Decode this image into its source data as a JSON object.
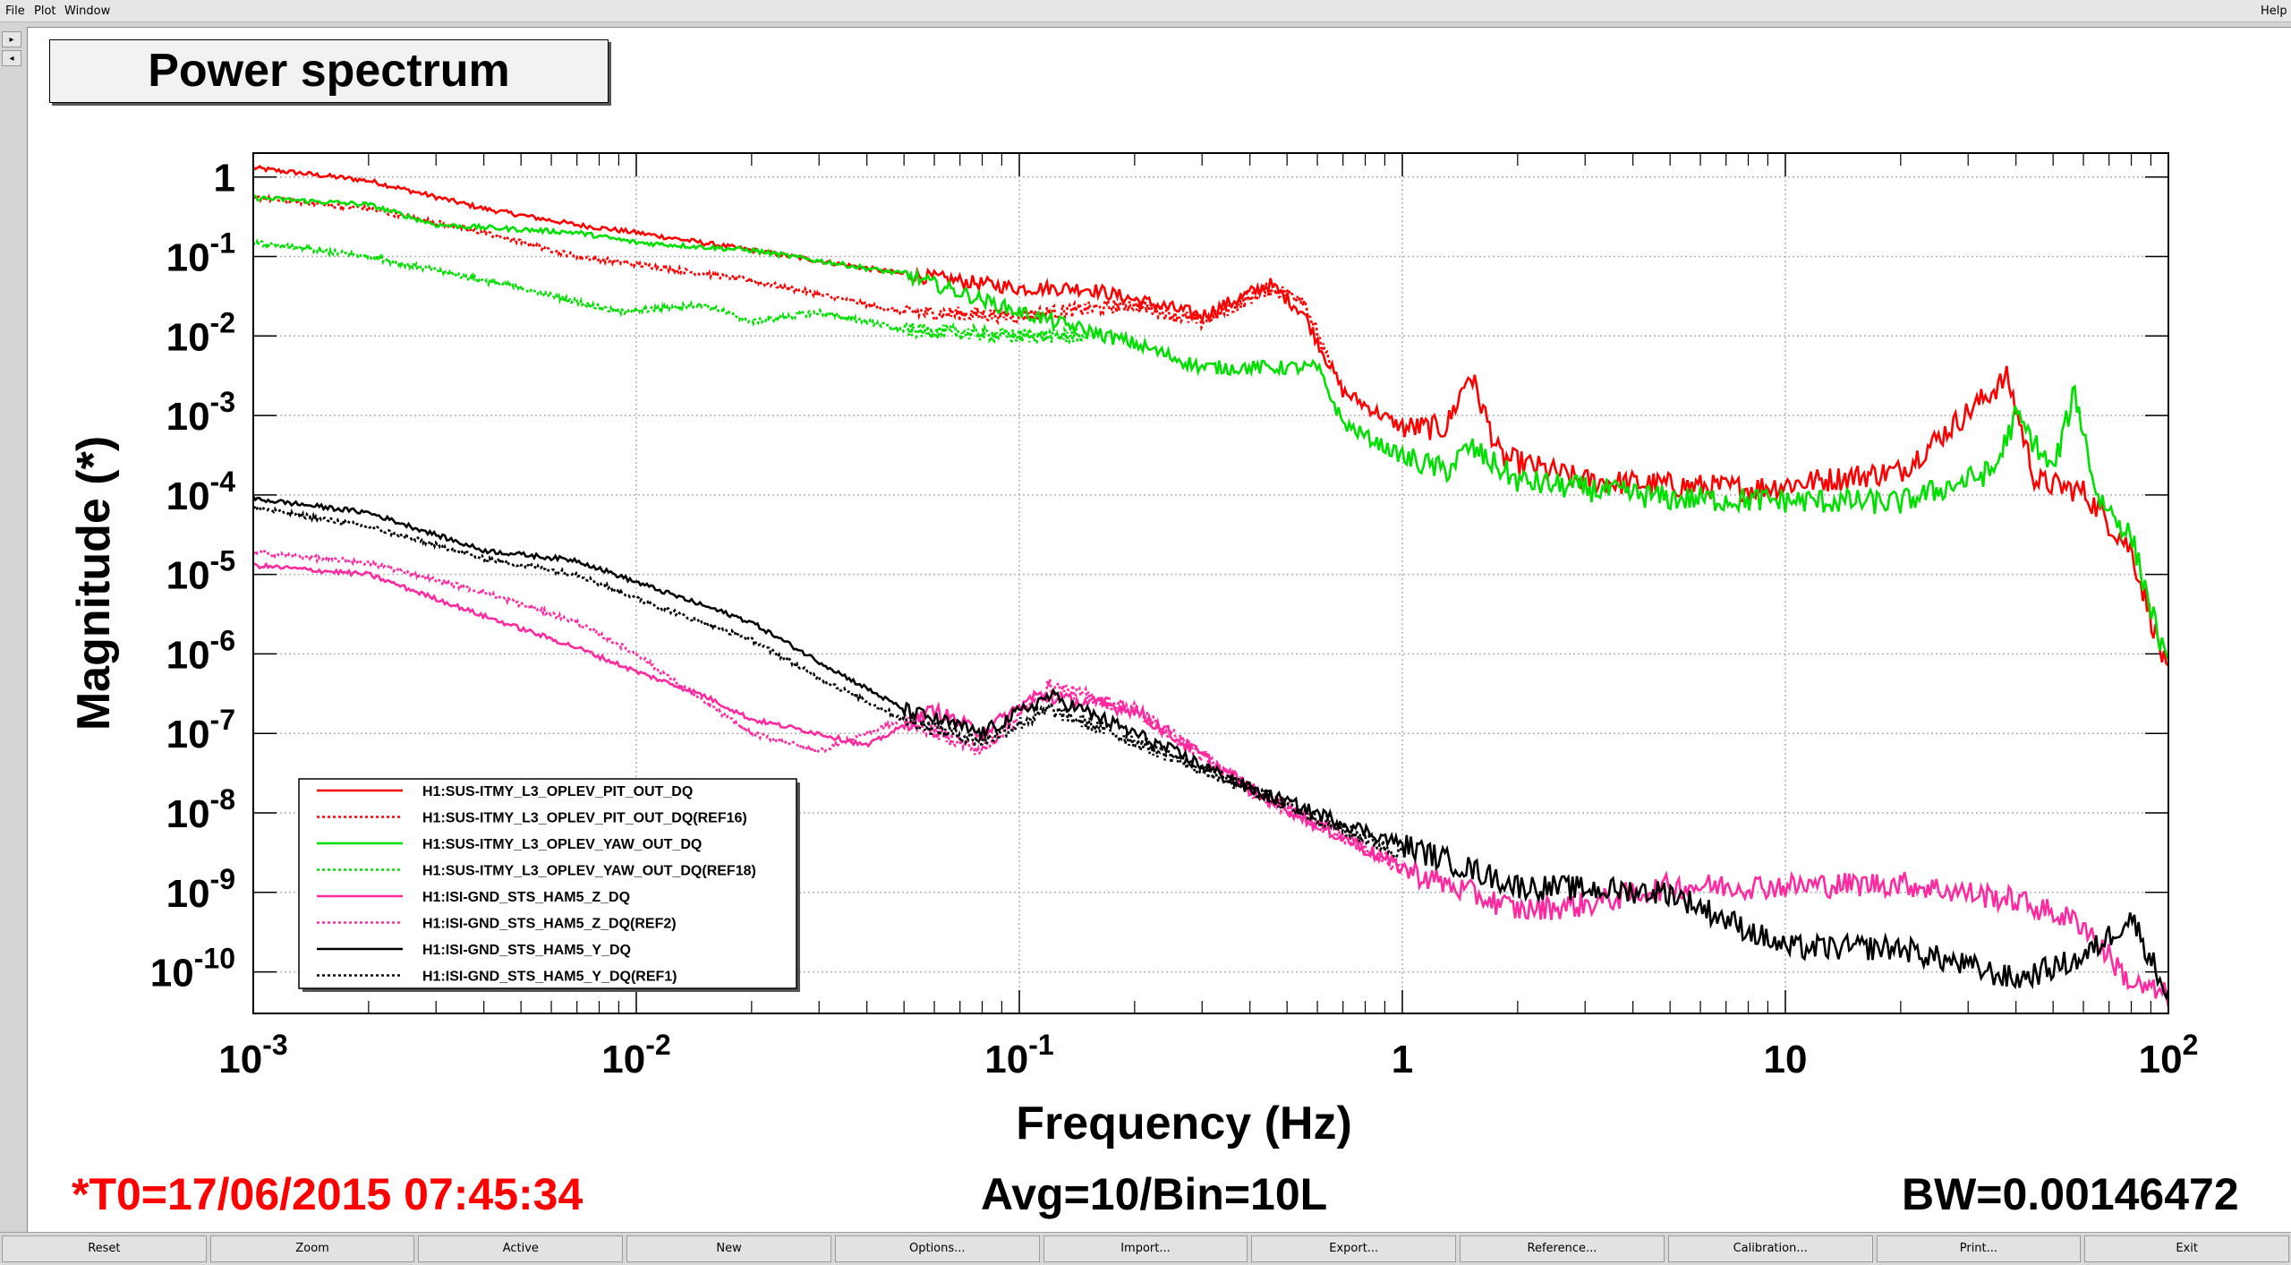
{
  "menu": {
    "file": "File",
    "plot": "Plot",
    "window": "Window",
    "help": "Help"
  },
  "colors": {
    "red": "#ff0000",
    "green": "#00e000",
    "magenta": "#ff2aa0",
    "black": "#000000",
    "t0": "#ff0000"
  },
  "chart_data": {
    "type": "line",
    "title": "Power spectrum",
    "xlabel": "Frequency (Hz)",
    "ylabel": "Magnitude (*)",
    "xscale": "log",
    "yscale": "log",
    "xlim": [
      0.001,
      100
    ],
    "ylim": [
      3e-11,
      2
    ],
    "grid": true,
    "legend_position": "bottom-left",
    "x_tick_labels": [
      {
        "value": 0.001,
        "base": "10",
        "exp": "-3"
      },
      {
        "value": 0.01,
        "base": "10",
        "exp": "-2"
      },
      {
        "value": 0.1,
        "base": "10",
        "exp": "-1"
      },
      {
        "value": 1,
        "base": "1",
        "exp": ""
      },
      {
        "value": 10,
        "base": "10",
        "exp": ""
      },
      {
        "value": 100,
        "base": "10",
        "exp": "2"
      }
    ],
    "y_tick_labels": [
      {
        "value": 1,
        "base": "1",
        "exp": ""
      },
      {
        "value": 0.1,
        "base": "10",
        "exp": "-1"
      },
      {
        "value": 0.01,
        "base": "10",
        "exp": "-2"
      },
      {
        "value": 0.001,
        "base": "10",
        "exp": "-3"
      },
      {
        "value": 0.0001,
        "base": "10",
        "exp": "-4"
      },
      {
        "value": 1e-05,
        "base": "10",
        "exp": "-5"
      },
      {
        "value": 1e-06,
        "base": "10",
        "exp": "-6"
      },
      {
        "value": 1e-07,
        "base": "10",
        "exp": "-7"
      },
      {
        "value": 1e-08,
        "base": "10",
        "exp": "-8"
      },
      {
        "value": 1e-09,
        "base": "10",
        "exp": "-9"
      },
      {
        "value": 1e-10,
        "base": "10",
        "exp": "-10"
      }
    ],
    "series": [
      {
        "name": "H1:SUS-ITMY_L3_OPLEV_PIT_OUT_DQ",
        "color": "#ff0000",
        "dash": "solid",
        "x": [
          0.001,
          0.002,
          0.004,
          0.007,
          0.01,
          0.02,
          0.05,
          0.1,
          0.15,
          0.3,
          0.45,
          0.55,
          0.7,
          1.0,
          1.3,
          1.5,
          1.8,
          3,
          8,
          20,
          38,
          45,
          60,
          80,
          100
        ],
        "y": [
          1.3,
          0.9,
          0.4,
          0.25,
          0.2,
          0.12,
          0.06,
          0.04,
          0.04,
          0.018,
          0.045,
          0.02,
          0.002,
          0.0007,
          0.0007,
          0.0035,
          0.0003,
          0.00015,
          0.00012,
          0.0002,
          0.003,
          0.00015,
          0.00011,
          2e-05,
          5e-07
        ]
      },
      {
        "name": "H1:SUS-ITMY_L3_OPLEV_PIT_OUT_DQ(REF16)",
        "color": "#ff0000",
        "dash": "dotted",
        "x": [
          0.001,
          0.002,
          0.004,
          0.007,
          0.01,
          0.02,
          0.05,
          0.1,
          0.2,
          0.3,
          0.45,
          0.55,
          0.65
        ],
        "y": [
          0.55,
          0.4,
          0.2,
          0.1,
          0.08,
          0.05,
          0.02,
          0.018,
          0.025,
          0.015,
          0.04,
          0.03,
          0.004
        ]
      },
      {
        "name": "H1:SUS-ITMY_L3_OPLEV_YAW_OUT_DQ",
        "color": "#00e000",
        "dash": "solid",
        "x": [
          0.001,
          0.002,
          0.003,
          0.007,
          0.01,
          0.02,
          0.05,
          0.1,
          0.2,
          0.3,
          0.6,
          0.7,
          1.0,
          1.3,
          1.5,
          2,
          5,
          20,
          35,
          40,
          50,
          57,
          65,
          80,
          100
        ],
        "y": [
          0.55,
          0.45,
          0.25,
          0.2,
          0.15,
          0.12,
          0.06,
          0.02,
          0.008,
          0.004,
          0.004,
          0.0008,
          0.0003,
          0.0002,
          0.0004,
          0.00015,
          9e-05,
          8e-05,
          0.0002,
          0.001,
          0.0002,
          0.002,
          0.0001,
          3e-05,
          6e-07
        ]
      },
      {
        "name": "H1:SUS-ITMY_L3_OPLEV_YAW_OUT_DQ(REF18)",
        "color": "#00e000",
        "dash": "dotted",
        "x": [
          0.001,
          0.002,
          0.005,
          0.009,
          0.015,
          0.02,
          0.03,
          0.05,
          0.1,
          0.15
        ],
        "y": [
          0.15,
          0.1,
          0.04,
          0.02,
          0.025,
          0.015,
          0.02,
          0.012,
          0.01,
          0.01
        ]
      },
      {
        "name": "H1:ISI-GND_STS_HAM5_Z_DQ",
        "color": "#ff2aa0",
        "dash": "solid",
        "x": [
          0.001,
          0.002,
          0.004,
          0.007,
          0.01,
          0.015,
          0.02,
          0.03,
          0.04,
          0.06,
          0.08,
          0.11,
          0.2,
          0.4,
          1.0,
          2.0,
          3.0,
          5.0,
          10,
          20,
          40,
          60,
          80,
          100
        ],
        "y": [
          1.3e-05,
          1e-05,
          3e-06,
          1.2e-06,
          6e-07,
          3e-07,
          1.5e-07,
          1e-07,
          7e-08,
          2e-07,
          1e-07,
          3e-07,
          2e-07,
          2e-08,
          2e-09,
          6e-10,
          7e-10,
          1.2e-09,
          1.2e-09,
          1.3e-09,
          8e-10,
          4e-10,
          7e-11,
          5e-11
        ]
      },
      {
        "name": "H1:ISI-GND_STS_HAM5_Z_DQ(REF2)",
        "color": "#ff2aa0",
        "dash": "dotted",
        "x": [
          0.001,
          0.002,
          0.004,
          0.007,
          0.01,
          0.015,
          0.02,
          0.03,
          0.05,
          0.08,
          0.12,
          0.2,
          0.4,
          1.0
        ],
        "y": [
          1.9e-05,
          1.4e-05,
          6e-06,
          2.5e-06,
          1e-06,
          2.5e-07,
          1e-07,
          6e-08,
          1.5e-07,
          6e-08,
          4e-07,
          2e-07,
          2e-08,
          2e-09
        ]
      },
      {
        "name": "H1:ISI-GND_STS_HAM5_Y_DQ",
        "color": "#000000",
        "dash": "solid",
        "x": [
          0.001,
          0.002,
          0.004,
          0.007,
          0.01,
          0.02,
          0.03,
          0.05,
          0.08,
          0.12,
          0.2,
          0.4,
          1.0,
          2.0,
          5.0,
          10,
          20,
          40,
          60,
          80,
          100
        ],
        "y": [
          9e-05,
          6e-05,
          2e-05,
          1.5e-05,
          8e-06,
          2.5e-06,
          8e-07,
          2e-07,
          1e-07,
          3e-07,
          1e-07,
          2e-08,
          4e-09,
          1.2e-09,
          1e-09,
          2e-10,
          2e-10,
          8e-11,
          1.5e-10,
          5e-10,
          5e-11
        ]
      },
      {
        "name": "H1:ISI-GND_STS_HAM5_Y_DQ(REF1)",
        "color": "#000000",
        "dash": "dotted",
        "x": [
          0.001,
          0.002,
          0.004,
          0.007,
          0.01,
          0.02,
          0.03,
          0.05,
          0.08,
          0.12,
          0.2,
          0.4,
          1.0
        ],
        "y": [
          7e-05,
          4e-05,
          1.6e-05,
          1e-05,
          5e-06,
          1.5e-06,
          5e-07,
          1.5e-07,
          8e-08,
          2e-07,
          8e-08,
          2e-08,
          3e-09
        ]
      }
    ]
  },
  "footer": {
    "t0": "*T0=17/06/2015 07:45:34",
    "avg": "Avg=10/Bin=10L",
    "bw": "BW=0.00146472"
  },
  "buttons": [
    "Reset",
    "Zoom",
    "Active",
    "New",
    "Options...",
    "Import...",
    "Export...",
    "Reference...",
    "Calibration...",
    "Print...",
    "Exit"
  ]
}
